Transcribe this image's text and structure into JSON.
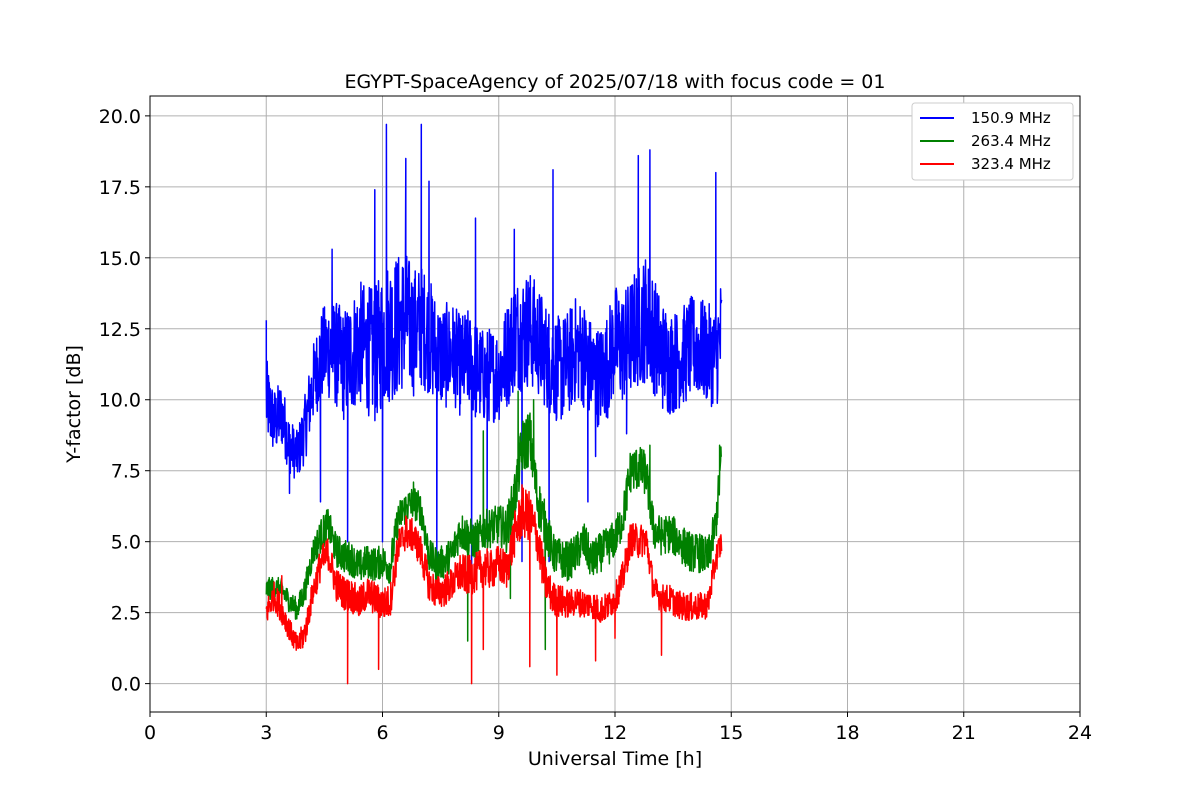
{
  "chart_data": {
    "type": "line",
    "title": "EGYPT-SpaceAgency of 2025/07/18 with focus code = 01",
    "xlabel": "Universal Time [h]",
    "ylabel": "Y-factor [dB]",
    "xlim": [
      0,
      24
    ],
    "ylim": [
      -1.0,
      20.7
    ],
    "xticks": [
      0,
      3,
      6,
      9,
      12,
      15,
      18,
      21,
      24
    ],
    "xtick_labels": [
      "0",
      "3",
      "6",
      "9",
      "12",
      "15",
      "18",
      "21",
      "24"
    ],
    "yticks": [
      0.0,
      2.5,
      5.0,
      7.5,
      10.0,
      12.5,
      15.0,
      17.5,
      20.0
    ],
    "ytick_labels": [
      "0.0",
      "2.5",
      "5.0",
      "7.5",
      "10.0",
      "12.5",
      "15.0",
      "17.5",
      "20.0"
    ],
    "grid": true,
    "legend_position": "top-right",
    "series": [
      {
        "name": "150.9 MHz",
        "color": "#0000ff",
        "x": [
          3.0,
          3.2,
          3.4,
          3.6,
          3.8,
          4.0,
          4.2,
          4.4,
          4.6,
          4.8,
          5.0,
          5.2,
          5.4,
          5.6,
          5.8,
          6.0,
          6.2,
          6.4,
          6.6,
          6.8,
          7.0,
          7.2,
          7.4,
          7.6,
          7.8,
          8.0,
          8.2,
          8.4,
          8.6,
          8.8,
          9.0,
          9.2,
          9.4,
          9.6,
          9.8,
          10.0,
          10.2,
          10.4,
          10.6,
          10.8,
          11.0,
          11.2,
          11.4,
          11.6,
          11.8,
          12.0,
          12.2,
          12.4,
          12.6,
          12.8,
          13.0,
          13.2,
          13.4,
          13.6,
          13.8,
          14.0,
          14.2,
          14.4,
          14.6,
          14.75
        ],
        "y": [
          10.0,
          9.2,
          9.5,
          8.4,
          8.0,
          9.0,
          10.5,
          11.5,
          11.8,
          11.6,
          11.2,
          11.6,
          12.0,
          11.8,
          11.5,
          12.2,
          12.5,
          12.6,
          12.9,
          12.4,
          12.6,
          12.3,
          11.6,
          11.5,
          11.7,
          11.2,
          11.4,
          11.0,
          10.8,
          10.9,
          10.9,
          11.5,
          12.3,
          12.4,
          12.5,
          12.1,
          11.6,
          11.2,
          11.0,
          11.3,
          11.8,
          11.6,
          11.0,
          10.8,
          11.2,
          12.1,
          11.8,
          12.2,
          12.6,
          12.9,
          12.3,
          11.6,
          11.3,
          11.4,
          11.6,
          11.9,
          11.8,
          11.6,
          11.5,
          12.3
        ],
        "noise_band": [
          1.5,
          1.2,
          1.2,
          1.0,
          0.9,
          1.2,
          1.4,
          1.6,
          1.8,
          1.9,
          2.0,
          2.1,
          2.2,
          2.3,
          2.4,
          2.5,
          2.6,
          2.6,
          2.4,
          2.3,
          2.2,
          2.1,
          2.0,
          1.9,
          1.8,
          1.8,
          1.8,
          1.8,
          1.7,
          1.7,
          1.7,
          1.9,
          2.0,
          2.1,
          2.1,
          2.0,
          1.9,
          1.9,
          1.9,
          1.9,
          1.9,
          1.9,
          1.8,
          1.8,
          1.9,
          2.0,
          2.0,
          2.1,
          2.2,
          2.3,
          2.1,
          2.0,
          1.9,
          1.8,
          1.8,
          1.8,
          1.8,
          1.8,
          1.8,
          2.2
        ],
        "peaks": [
          [
            3.0,
            12.8
          ],
          [
            4.7,
            15.3
          ],
          [
            5.8,
            17.4
          ],
          [
            6.1,
            19.7
          ],
          [
            6.6,
            18.5
          ],
          [
            7.0,
            19.7
          ],
          [
            7.2,
            17.7
          ],
          [
            8.4,
            16.4
          ],
          [
            9.4,
            16.0
          ],
          [
            10.4,
            18.1
          ],
          [
            12.6,
            18.6
          ],
          [
            12.9,
            18.8
          ],
          [
            14.6,
            18.0
          ]
        ],
        "dips": [
          [
            3.6,
            6.7
          ],
          [
            4.4,
            6.4
          ],
          [
            5.1,
            5.0
          ],
          [
            6.0,
            5.0
          ],
          [
            7.4,
            4.3
          ],
          [
            8.3,
            3.6
          ],
          [
            8.7,
            5.0
          ],
          [
            9.6,
            4.3
          ],
          [
            10.3,
            4.3
          ],
          [
            11.3,
            6.4
          ],
          [
            11.5,
            8.0
          ],
          [
            12.3,
            8.8
          ]
        ]
      },
      {
        "name": "263.4 MHz",
        "color": "#008000",
        "x": [
          3.0,
          3.2,
          3.4,
          3.6,
          3.8,
          4.0,
          4.2,
          4.4,
          4.6,
          4.8,
          5.0,
          5.2,
          5.4,
          5.6,
          5.8,
          6.0,
          6.2,
          6.4,
          6.6,
          6.8,
          7.0,
          7.2,
          7.4,
          7.6,
          7.8,
          8.0,
          8.2,
          8.4,
          8.6,
          8.8,
          9.0,
          9.2,
          9.4,
          9.6,
          9.8,
          10.0,
          10.2,
          10.4,
          10.6,
          10.8,
          11.0,
          11.2,
          11.4,
          11.6,
          11.8,
          12.0,
          12.2,
          12.4,
          12.6,
          12.8,
          13.0,
          13.2,
          13.4,
          13.6,
          13.8,
          14.0,
          14.2,
          14.4,
          14.6,
          14.75
        ],
        "y": [
          3.3,
          3.4,
          3.3,
          2.9,
          2.6,
          3.3,
          4.6,
          5.2,
          5.6,
          4.7,
          4.5,
          4.4,
          4.1,
          4.3,
          4.2,
          4.3,
          4.1,
          5.8,
          6.2,
          6.4,
          6.1,
          4.5,
          4.2,
          4.3,
          4.6,
          5.4,
          5.2,
          5.0,
          5.4,
          5.5,
          5.6,
          5.4,
          6.5,
          8.3,
          8.7,
          6.5,
          5.6,
          4.6,
          4.4,
          4.3,
          4.6,
          5.0,
          4.3,
          4.6,
          4.8,
          5.1,
          5.8,
          7.5,
          7.6,
          7.4,
          5.4,
          5.2,
          5.3,
          5.1,
          4.8,
          4.6,
          4.6,
          4.4,
          5.6,
          8.0
        ],
        "noise_band": [
          0.4,
          0.4,
          0.4,
          0.4,
          0.4,
          0.5,
          0.5,
          0.6,
          0.6,
          0.6,
          0.6,
          0.6,
          0.6,
          0.6,
          0.6,
          0.6,
          0.6,
          0.6,
          0.6,
          0.6,
          0.6,
          0.6,
          0.6,
          0.6,
          0.6,
          0.7,
          0.7,
          0.7,
          0.7,
          0.7,
          0.7,
          0.8,
          0.9,
          1.0,
          1.0,
          0.9,
          0.8,
          0.7,
          0.7,
          0.7,
          0.7,
          0.7,
          0.7,
          0.7,
          0.7,
          0.7,
          0.7,
          0.8,
          0.8,
          0.8,
          0.7,
          0.7,
          0.7,
          0.7,
          0.7,
          0.7,
          0.7,
          0.7,
          0.7,
          0.7
        ],
        "peaks": [
          [
            6.8,
            7.1
          ],
          [
            8.6,
            8.9
          ],
          [
            9.5,
            10.3
          ],
          [
            9.9,
            10.0
          ],
          [
            12.9,
            8.4
          ],
          [
            14.7,
            8.4
          ]
        ],
        "dips": [
          [
            8.2,
            1.5
          ],
          [
            9.3,
            3.0
          ],
          [
            10.2,
            1.2
          ]
        ]
      },
      {
        "name": "323.4 MHz",
        "color": "#ff0000",
        "x": [
          3.0,
          3.2,
          3.4,
          3.6,
          3.8,
          4.0,
          4.2,
          4.4,
          4.6,
          4.8,
          5.0,
          5.2,
          5.4,
          5.6,
          5.8,
          6.0,
          6.2,
          6.4,
          6.6,
          6.8,
          7.0,
          7.2,
          7.4,
          7.6,
          7.8,
          8.0,
          8.2,
          8.4,
          8.6,
          8.8,
          9.0,
          9.2,
          9.4,
          9.6,
          9.8,
          10.0,
          10.2,
          10.4,
          10.6,
          10.8,
          11.0,
          11.2,
          11.4,
          11.6,
          11.8,
          12.0,
          12.2,
          12.4,
          12.6,
          12.8,
          13.0,
          13.2,
          13.4,
          13.6,
          13.8,
          14.0,
          14.2,
          14.4,
          14.6,
          14.75
        ],
        "y": [
          2.5,
          3.1,
          2.6,
          1.9,
          1.3,
          1.8,
          3.2,
          4.2,
          4.6,
          3.5,
          3.2,
          3.1,
          2.8,
          3.2,
          3.0,
          2.8,
          2.9,
          4.8,
          5.3,
          5.2,
          4.6,
          3.5,
          3.2,
          3.3,
          3.5,
          3.9,
          3.8,
          3.9,
          4.1,
          4.0,
          4.2,
          4.0,
          5.2,
          6.0,
          5.9,
          5.1,
          3.6,
          3.0,
          2.9,
          2.8,
          2.9,
          2.8,
          2.8,
          2.6,
          2.7,
          3.0,
          3.7,
          5.1,
          5.0,
          5.1,
          3.3,
          3.0,
          3.0,
          2.8,
          2.7,
          2.7,
          2.7,
          2.8,
          4.4,
          5.0
        ],
        "noise_band": [
          0.5,
          0.5,
          0.5,
          0.4,
          0.4,
          0.5,
          0.5,
          0.6,
          0.6,
          0.6,
          0.6,
          0.6,
          0.6,
          0.6,
          0.6,
          0.6,
          0.6,
          0.6,
          0.6,
          0.6,
          0.6,
          0.6,
          0.6,
          0.6,
          0.6,
          0.7,
          0.7,
          0.7,
          0.7,
          0.7,
          0.7,
          0.7,
          0.8,
          0.9,
          0.9,
          0.8,
          0.7,
          0.6,
          0.6,
          0.5,
          0.5,
          0.5,
          0.5,
          0.5,
          0.5,
          0.5,
          0.6,
          0.6,
          0.6,
          0.6,
          0.5,
          0.5,
          0.5,
          0.5,
          0.5,
          0.5,
          0.5,
          0.5,
          0.5,
          0.5
        ],
        "peaks": [
          [
            3.4,
            3.8
          ],
          [
            6.6,
            5.9
          ],
          [
            9.6,
            7.0
          ]
        ],
        "dips": [
          [
            5.1,
            0.0
          ],
          [
            5.9,
            0.5
          ],
          [
            8.3,
            0.0
          ],
          [
            8.6,
            1.2
          ],
          [
            9.8,
            0.6
          ],
          [
            10.5,
            0.3
          ],
          [
            11.5,
            0.8
          ],
          [
            12.0,
            1.6
          ],
          [
            13.2,
            1.0
          ]
        ]
      }
    ]
  }
}
